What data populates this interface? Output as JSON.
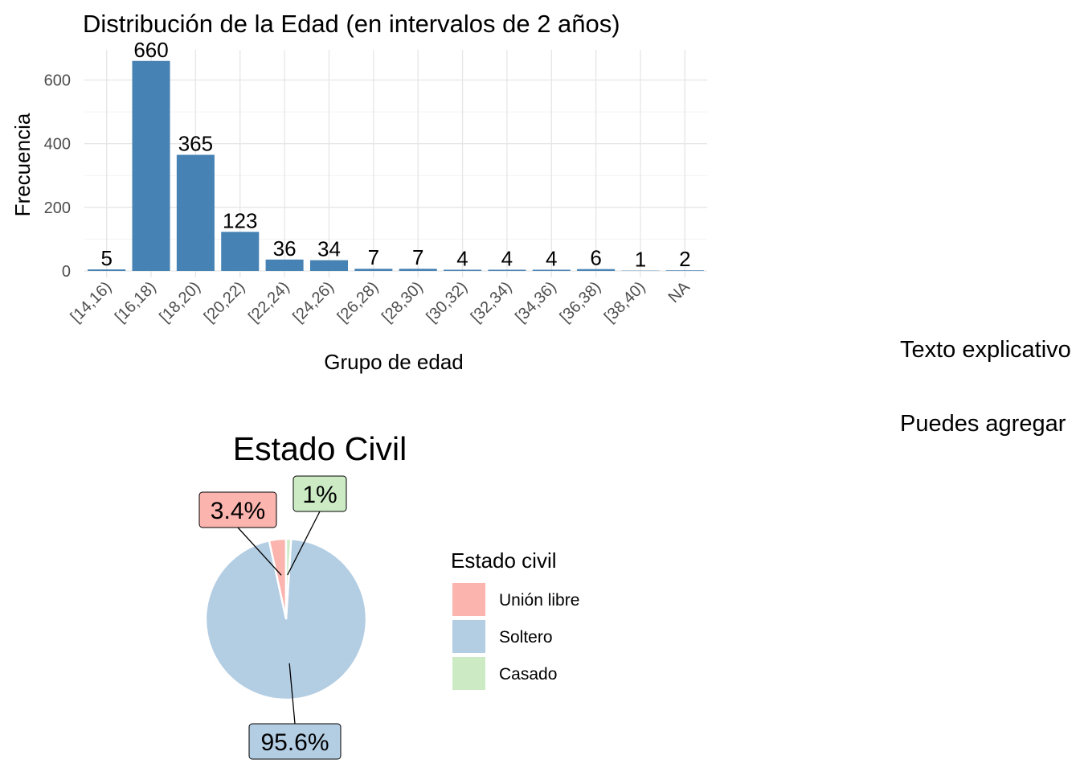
{
  "chart_data": [
    {
      "type": "bar",
      "title": "Distribución de la Edad (en intervalos de 2 años)",
      "xlabel": "Grupo de edad",
      "ylabel": "Frecuencia",
      "categories": [
        "[14,16)",
        "[16,18)",
        "[18,20)",
        "[20,22)",
        "[22,24)",
        "[24,26)",
        "[26,28)",
        "[28,30)",
        "[30,32)",
        "[32,34)",
        "[34,36)",
        "[36,38)",
        "[38,40)",
        "NA"
      ],
      "values": [
        5,
        660,
        365,
        123,
        36,
        34,
        7,
        7,
        4,
        4,
        4,
        6,
        1,
        2
      ],
      "data_labels": [
        "5",
        "660",
        "365",
        "123",
        "36",
        "34",
        "7",
        "7",
        "4",
        "4",
        "4",
        "6",
        "1",
        "2"
      ],
      "y_ticks": [
        "0",
        "200",
        "400",
        "600"
      ],
      "ylim": [
        0,
        700
      ],
      "bar_color": "#4682B4",
      "grid": true
    },
    {
      "type": "pie",
      "title": "Estado Civil",
      "legend_title": "Estado civil",
      "legend_position": "right",
      "slices": [
        {
          "name": "Unión libre",
          "value": 3.4,
          "label": "3.4%",
          "color": "#FBB4AE"
        },
        {
          "name": "Soltero",
          "value": 95.6,
          "label": "95.6%",
          "color": "#B3CDE3"
        },
        {
          "name": "Casado",
          "value": 1.0,
          "label": "1%",
          "color": "#CCEBC5"
        }
      ]
    }
  ],
  "side_text": {
    "line1": "Texto explicativo",
    "line2": "Puedes agregar"
  }
}
